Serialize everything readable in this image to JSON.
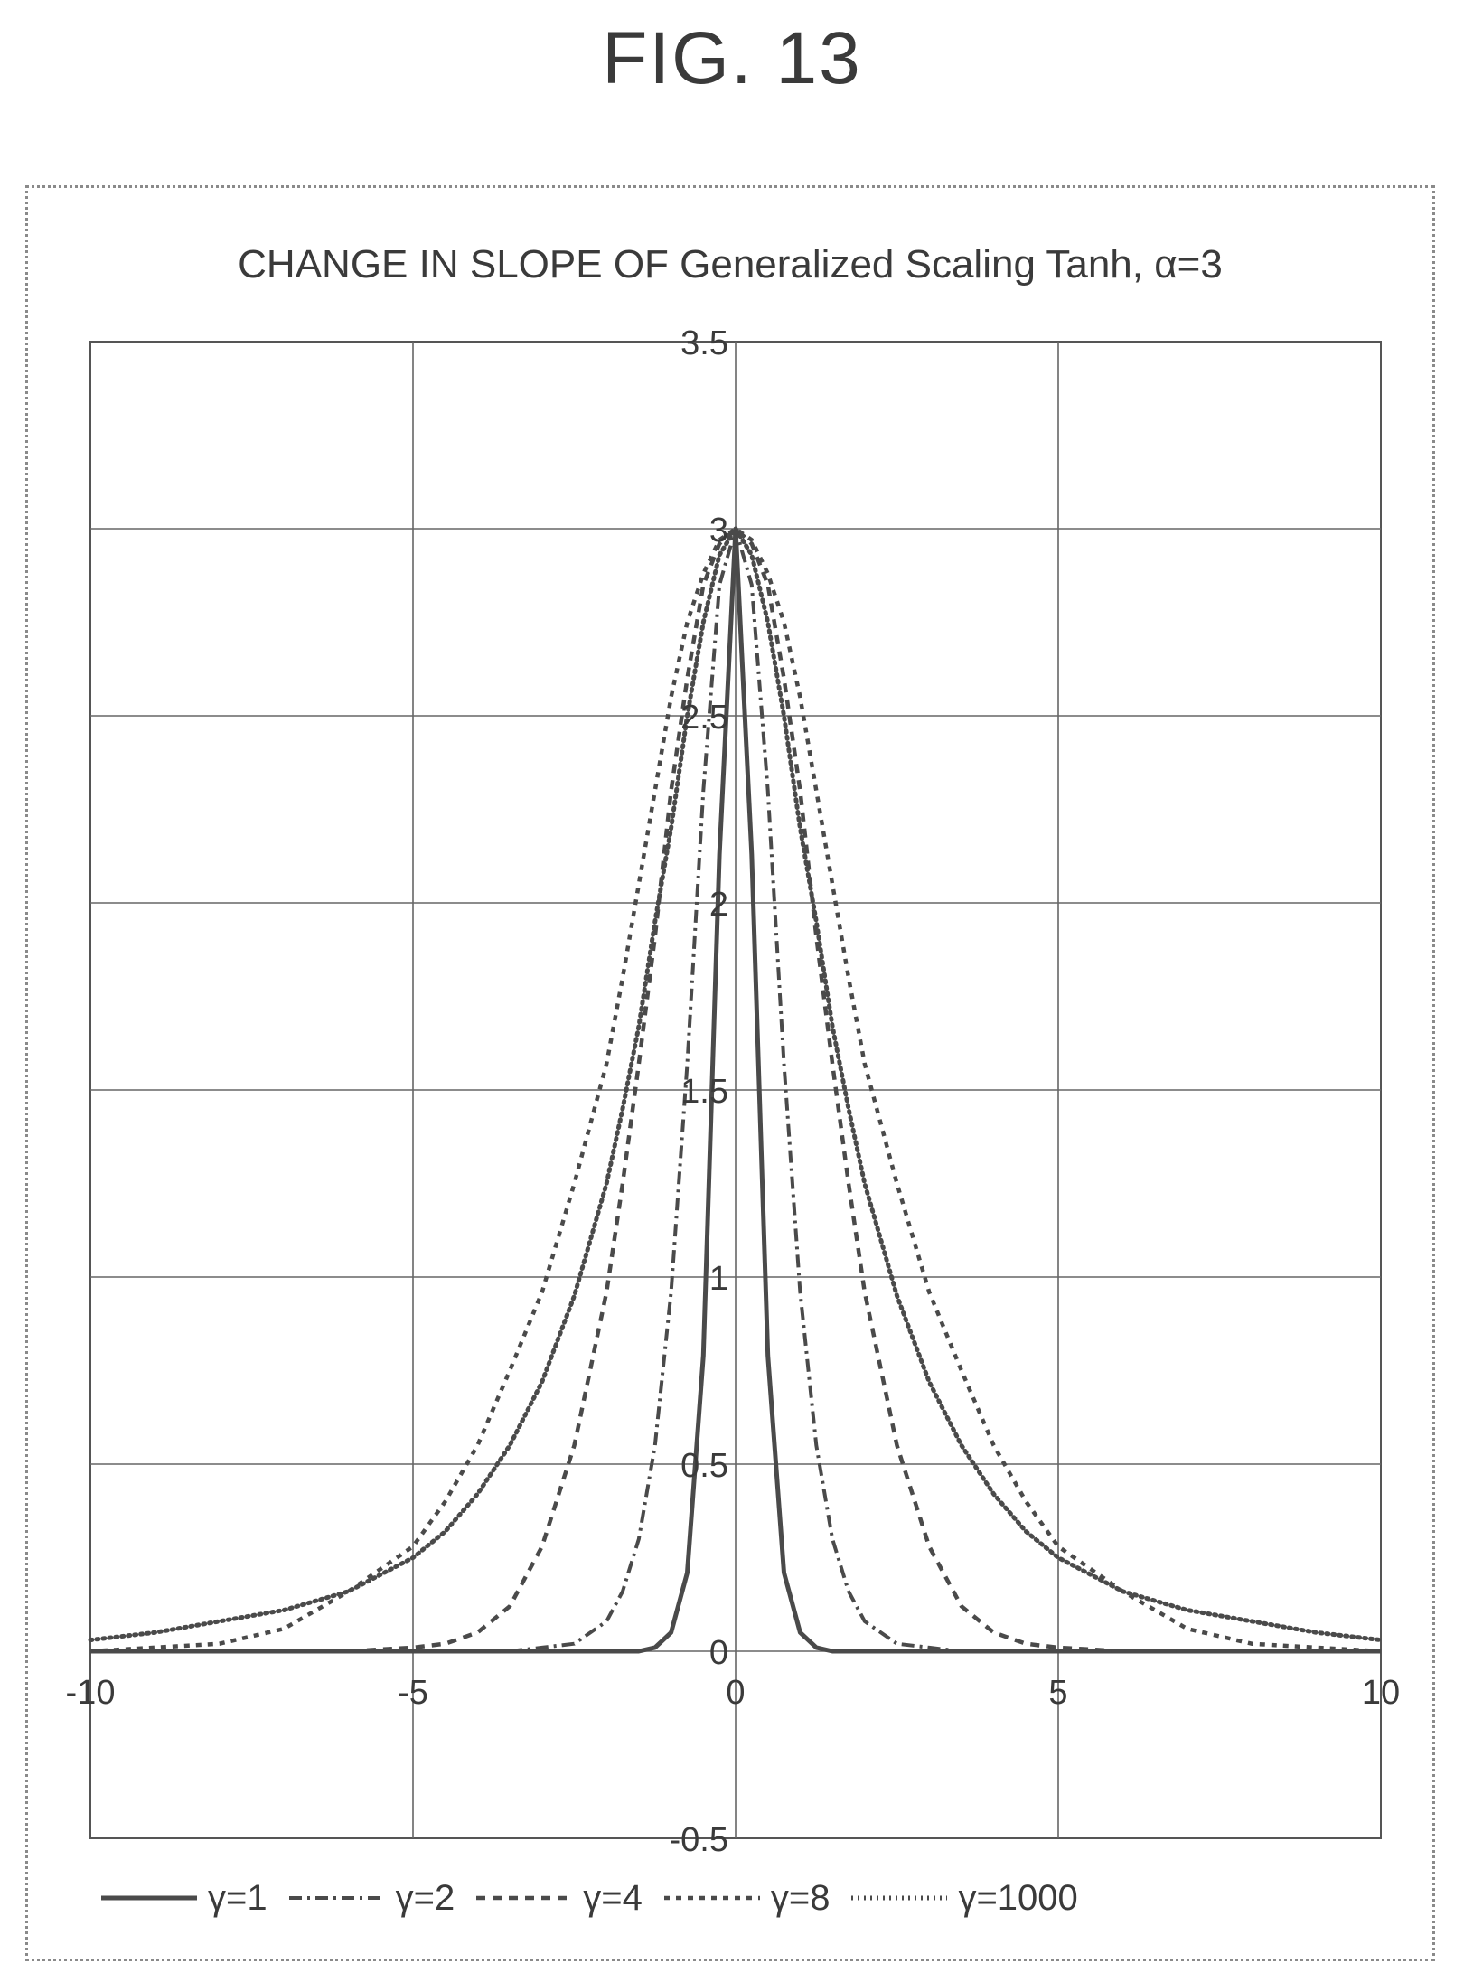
{
  "figure": {
    "label": "FIG. 13"
  },
  "chart_data": {
    "type": "line",
    "title": "CHANGE IN SLOPE OF Generalized Scaling Tanh, α=3",
    "xlabel": "",
    "ylabel": "",
    "xlim": [
      -10,
      10
    ],
    "ylim": [
      -0.5,
      3.5
    ],
    "x_ticks": [
      -10,
      -5,
      0,
      5,
      10
    ],
    "x_tick_labels": [
      "-10",
      "-5",
      "0",
      "5",
      "10"
    ],
    "y_ticks": [
      -0.5,
      0,
      0.5,
      1,
      1.5,
      2,
      2.5,
      3,
      3.5
    ],
    "y_tick_labels": [
      "-0.5",
      "0",
      "0.5",
      "1",
      "1.5",
      "2",
      "2.5",
      "3",
      "3.5"
    ],
    "grid": true,
    "legend_position": "bottom",
    "x": [
      -10,
      -9,
      -8,
      -7,
      -6,
      -5,
      -4.5,
      -4,
      -3.5,
      -3,
      -2.5,
      -2,
      -1.75,
      -1.5,
      -1.25,
      -1,
      -0.75,
      -0.5,
      -0.25,
      0,
      0.25,
      0.5,
      0.75,
      1,
      1.25,
      1.5,
      1.75,
      2,
      2.5,
      3,
      3.5,
      4,
      4.5,
      5,
      6,
      7,
      8,
      9,
      10
    ],
    "series": [
      {
        "name": "γ=1",
        "style": "solid",
        "color": "#4a4a4a",
        "values": [
          0,
          0,
          0,
          0,
          0,
          0,
          0,
          0,
          0,
          0,
          0,
          0,
          0,
          0,
          0.01,
          0.05,
          0.21,
          0.79,
          2.13,
          3.0,
          2.13,
          0.79,
          0.21,
          0.05,
          0.01,
          0,
          0,
          0,
          0,
          0,
          0,
          0,
          0,
          0,
          0,
          0,
          0,
          0,
          0
        ]
      },
      {
        "name": "γ=2",
        "style": "dash-dot",
        "color": "#4a4a4a",
        "values": [
          0,
          0,
          0,
          0,
          0,
          0,
          0,
          0,
          0,
          0.01,
          0.02,
          0.08,
          0.16,
          0.3,
          0.55,
          0.96,
          1.57,
          2.3,
          2.85,
          3.0,
          2.85,
          2.3,
          1.57,
          0.96,
          0.55,
          0.3,
          0.16,
          0.08,
          0.02,
          0.01,
          0,
          0,
          0,
          0,
          0,
          0,
          0,
          0,
          0
        ]
      },
      {
        "name": "γ=4",
        "style": "dashed",
        "color": "#4a4a4a",
        "values": [
          0,
          0,
          0,
          0,
          0,
          0.01,
          0.02,
          0.05,
          0.12,
          0.28,
          0.55,
          0.96,
          1.25,
          1.57,
          1.91,
          2.3,
          2.6,
          2.85,
          2.96,
          3.0,
          2.96,
          2.85,
          2.6,
          2.3,
          1.91,
          1.57,
          1.25,
          0.96,
          0.55,
          0.28,
          0.12,
          0.05,
          0.02,
          0.01,
          0,
          0,
          0,
          0,
          0
        ]
      },
      {
        "name": "γ=8",
        "style": "short-dash",
        "color": "#4a4a4a",
        "values": [
          0,
          0.01,
          0.02,
          0.06,
          0.16,
          0.28,
          0.4,
          0.55,
          0.75,
          0.96,
          1.25,
          1.57,
          1.8,
          2.05,
          2.3,
          2.55,
          2.75,
          2.88,
          2.97,
          3.0,
          2.97,
          2.88,
          2.75,
          2.55,
          2.3,
          2.05,
          1.8,
          1.57,
          1.25,
          0.96,
          0.75,
          0.55,
          0.4,
          0.28,
          0.16,
          0.06,
          0.02,
          0.01,
          0
        ]
      },
      {
        "name": "γ=1000",
        "style": "dotted",
        "color": "#4a4a4a",
        "values": [
          0.03,
          0.05,
          0.08,
          0.11,
          0.16,
          0.25,
          0.32,
          0.42,
          0.55,
          0.72,
          0.95,
          1.25,
          1.45,
          1.67,
          1.95,
          2.2,
          2.5,
          2.75,
          2.93,
          3.0,
          2.93,
          2.75,
          2.5,
          2.2,
          1.95,
          1.67,
          1.45,
          1.25,
          0.95,
          0.72,
          0.55,
          0.42,
          0.32,
          0.25,
          0.16,
          0.11,
          0.08,
          0.05,
          0.03
        ]
      }
    ]
  }
}
